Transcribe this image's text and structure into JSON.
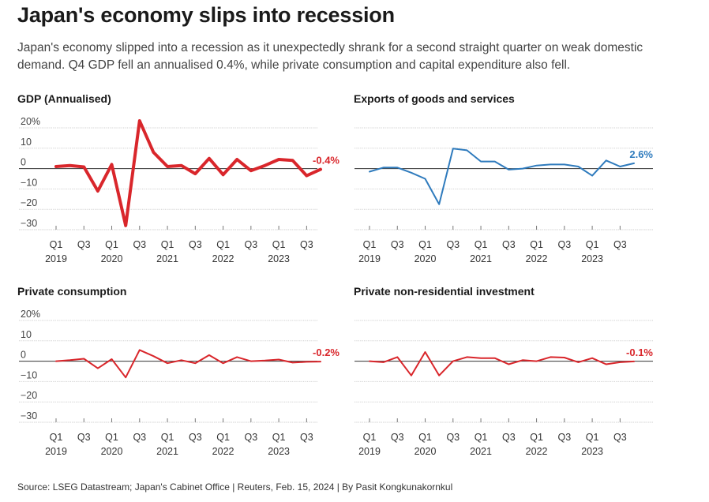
{
  "header": {
    "title": "Japan's economy slips into recession",
    "subtitle": "Japan's economy slipped into a recession as it unexpectedly shrank for a second straight quarter on weak domestic demand. Q4 GDP fell an annualised 0.4%, while private consumption and capital expenditure also fell."
  },
  "footer": {
    "source": "Source: LSEG Datastream; Japan's Cabinet Office | Reuters, Feb. 15, 2024 | By Pasit Kongkunakornkul"
  },
  "colors": {
    "red": "#d9262b",
    "blue": "#2f7bbd"
  },
  "chart_data": [
    {
      "type": "line",
      "title": "GDP (Annualised)",
      "x": [
        "2019-Q1",
        "2019-Q2",
        "2019-Q3",
        "2019-Q4",
        "2020-Q1",
        "2020-Q2",
        "2020-Q3",
        "2020-Q4",
        "2021-Q1",
        "2021-Q2",
        "2021-Q3",
        "2021-Q4",
        "2022-Q1",
        "2022-Q2",
        "2022-Q3",
        "2022-Q4",
        "2023-Q1",
        "2023-Q2",
        "2023-Q3",
        "2023-Q4"
      ],
      "series": [
        {
          "values": [
            1.0,
            1.5,
            0.8,
            -11.0,
            2.0,
            -28.0,
            23.5,
            8.0,
            1.0,
            1.5,
            -2.5,
            5.0,
            -3.0,
            4.5,
            -1.0,
            1.5,
            4.5,
            4.0,
            -3.5,
            -0.4
          ],
          "color": "#d9262b",
          "width": 4
        }
      ],
      "end_label": "-0.4%",
      "ylim": [
        -30,
        20
      ],
      "y_ticks": [
        20,
        10,
        0,
        -10,
        -20,
        -30
      ],
      "y_tick_labels": [
        "20%",
        "10",
        "0",
        "−10",
        "−20",
        "−30"
      ],
      "x_tick_labels": [
        "Q1",
        "Q3",
        "Q1",
        "Q3",
        "Q1",
        "Q3",
        "Q1",
        "Q3",
        "Q1",
        "Q3"
      ],
      "x_year_labels": [
        "2019",
        "2020",
        "2021",
        "2022",
        "2023"
      ]
    },
    {
      "type": "line",
      "title": "Exports of goods and services",
      "x": [
        "2019-Q1",
        "2019-Q2",
        "2019-Q3",
        "2019-Q4",
        "2020-Q1",
        "2020-Q2",
        "2020-Q3",
        "2020-Q4",
        "2021-Q1",
        "2021-Q2",
        "2021-Q3",
        "2021-Q4",
        "2022-Q1",
        "2022-Q2",
        "2022-Q3",
        "2022-Q4",
        "2023-Q1",
        "2023-Q2",
        "2023-Q3",
        "2023-Q4"
      ],
      "series": [
        {
          "values": [
            -1.5,
            0.5,
            0.5,
            -2.0,
            -5.0,
            -17.5,
            9.8,
            9.0,
            3.5,
            3.5,
            -0.5,
            0.0,
            1.5,
            2.0,
            2.0,
            1.0,
            -3.5,
            4.0,
            1.0,
            2.6
          ],
          "color": "#2f7bbd",
          "width": 2
        }
      ],
      "end_label": "2.6%",
      "ylim": [
        -30,
        20
      ],
      "y_ticks": [
        20,
        10,
        0,
        -10,
        -20,
        -30
      ],
      "y_tick_labels": [
        "",
        "",
        "",
        "",
        "",
        ""
      ],
      "x_tick_labels": [
        "Q1",
        "Q3",
        "Q1",
        "Q3",
        "Q1",
        "Q3",
        "Q1",
        "Q3",
        "Q1",
        "Q3"
      ],
      "x_year_labels": [
        "2019",
        "2020",
        "2021",
        "2022",
        "2023"
      ]
    },
    {
      "type": "line",
      "title": "Private consumption",
      "x": [
        "2019-Q1",
        "2019-Q2",
        "2019-Q3",
        "2019-Q4",
        "2020-Q1",
        "2020-Q2",
        "2020-Q3",
        "2020-Q4",
        "2021-Q1",
        "2021-Q2",
        "2021-Q3",
        "2021-Q4",
        "2022-Q1",
        "2022-Q2",
        "2022-Q3",
        "2022-Q4",
        "2023-Q1",
        "2023-Q2",
        "2023-Q3",
        "2023-Q4"
      ],
      "series": [
        {
          "values": [
            0.0,
            0.5,
            1.2,
            -3.5,
            1.0,
            -8.0,
            5.5,
            2.5,
            -1.0,
            0.5,
            -1.0,
            3.0,
            -1.0,
            2.0,
            0.0,
            0.3,
            0.8,
            -0.7,
            -0.3,
            -0.2
          ],
          "color": "#d9262b",
          "width": 2
        }
      ],
      "end_label": "-0.2%",
      "ylim": [
        -30,
        20
      ],
      "y_ticks": [
        20,
        10,
        0,
        -10,
        -20,
        -30
      ],
      "y_tick_labels": [
        "20%",
        "10",
        "0",
        "−10",
        "−20",
        "−30"
      ],
      "x_tick_labels": [
        "Q1",
        "Q3",
        "Q1",
        "Q3",
        "Q1",
        "Q3",
        "Q1",
        "Q3",
        "Q1",
        "Q3"
      ],
      "x_year_labels": [
        "2019",
        "2020",
        "2021",
        "2022",
        "2023"
      ]
    },
    {
      "type": "line",
      "title": "Private non-residential investment",
      "x": [
        "2019-Q1",
        "2019-Q2",
        "2019-Q3",
        "2019-Q4",
        "2020-Q1",
        "2020-Q2",
        "2020-Q3",
        "2020-Q4",
        "2021-Q1",
        "2021-Q2",
        "2021-Q3",
        "2021-Q4",
        "2022-Q1",
        "2022-Q2",
        "2022-Q3",
        "2022-Q4",
        "2023-Q1",
        "2023-Q2",
        "2023-Q3",
        "2023-Q4"
      ],
      "series": [
        {
          "values": [
            0.0,
            -0.5,
            2.0,
            -7.0,
            4.5,
            -7.0,
            0.0,
            2.0,
            1.5,
            1.5,
            -1.5,
            0.5,
            0.0,
            2.0,
            1.8,
            -0.5,
            1.5,
            -1.5,
            -0.5,
            -0.1
          ],
          "color": "#d9262b",
          "width": 2
        }
      ],
      "end_label": "-0.1%",
      "ylim": [
        -30,
        20
      ],
      "y_ticks": [
        20,
        10,
        0,
        -10,
        -20,
        -30
      ],
      "y_tick_labels": [
        "",
        "",
        "",
        "",
        "",
        ""
      ],
      "x_tick_labels": [
        "Q1",
        "Q3",
        "Q1",
        "Q3",
        "Q1",
        "Q3",
        "Q1",
        "Q3",
        "Q1",
        "Q3"
      ],
      "x_year_labels": [
        "2019",
        "2020",
        "2021",
        "2022",
        "2023"
      ]
    }
  ]
}
